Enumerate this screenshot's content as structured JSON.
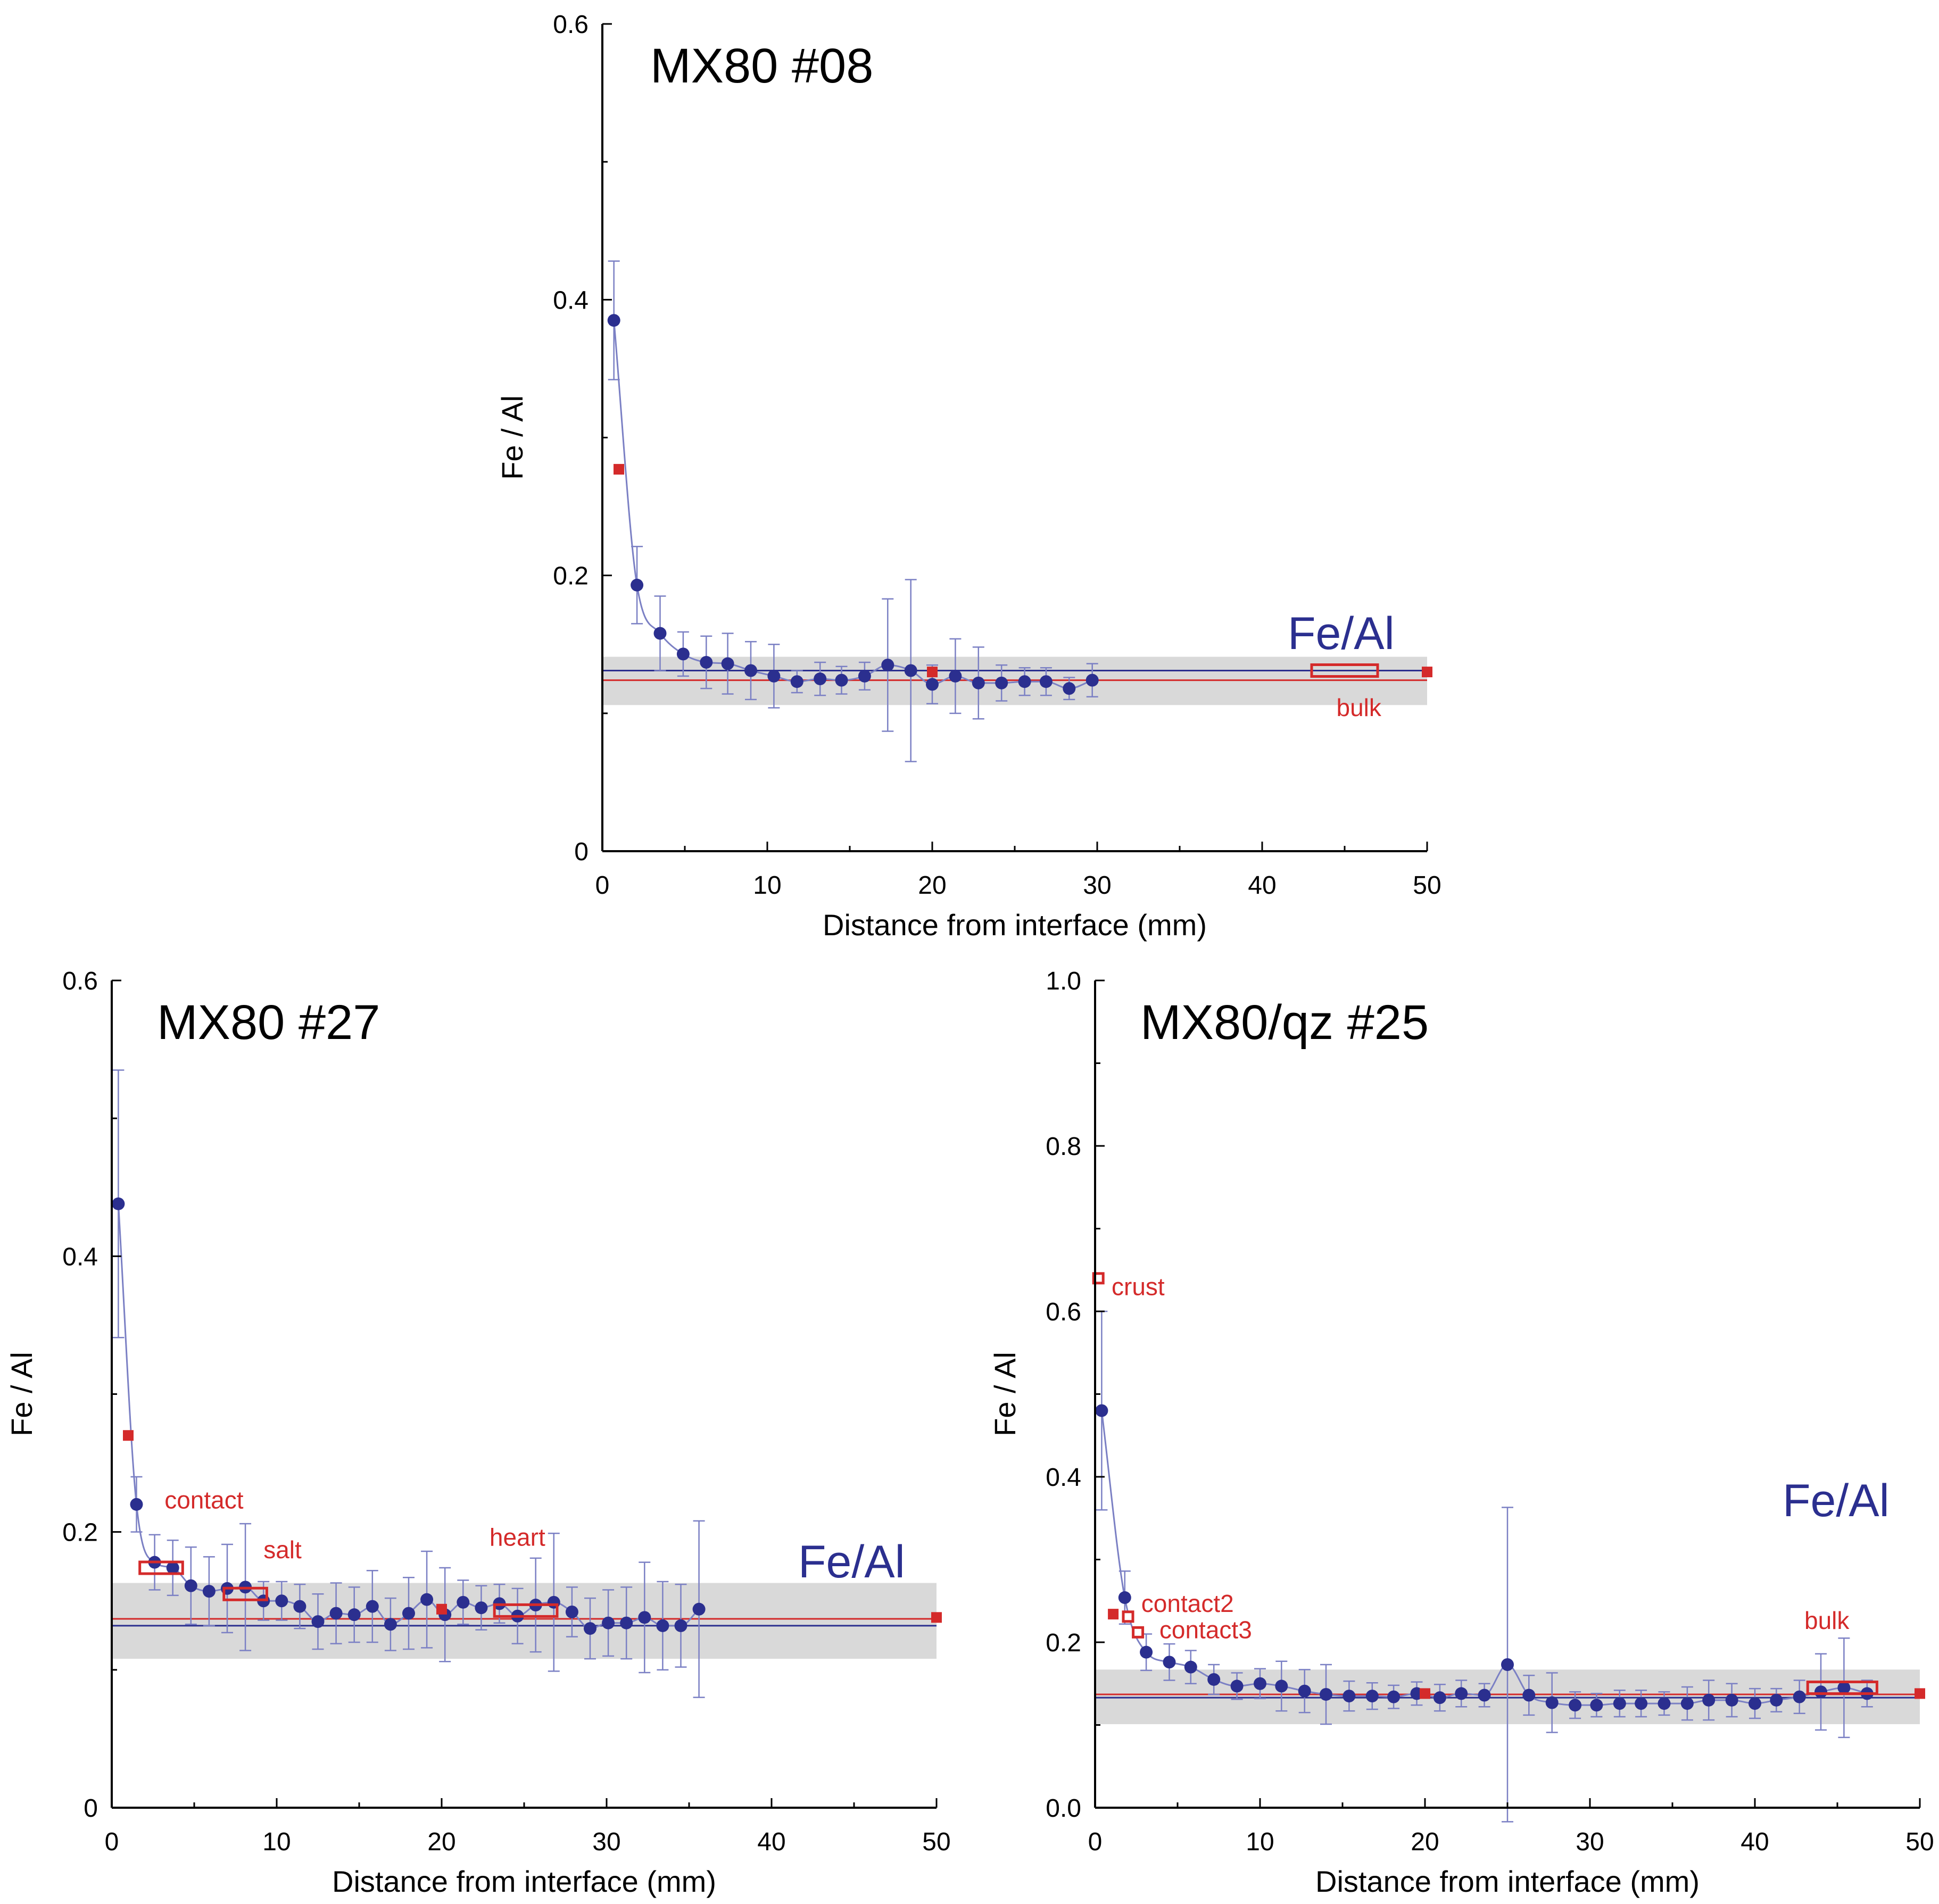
{
  "colors": {
    "series": "#2b2f8f",
    "errorbar": "#7b80c4",
    "reference": "#d42a2a",
    "band": "#d9d9d9",
    "axis": "#000000"
  },
  "chart_data": [
    {
      "id": "p08",
      "type": "scatter",
      "title": "MX80 #08",
      "xlabel": "Distance from interface (mm)",
      "ylabel": "Fe / Al",
      "xlim": [
        0,
        50
      ],
      "ylim": [
        0,
        0.6
      ],
      "xticks": [
        0,
        10,
        20,
        30,
        40,
        50
      ],
      "yticks": [
        0,
        0.2,
        0.4,
        0.6
      ],
      "ytick_labels": [
        "0",
        "0.2",
        "0.4",
        "0.6"
      ],
      "series_label": "Fe/Al",
      "series": {
        "name": "Fe/Al",
        "x": [
          0.7,
          2.1,
          3.5,
          4.9,
          6.3,
          7.6,
          9.0,
          10.4,
          11.8,
          13.2,
          14.5,
          15.9,
          17.3,
          18.7,
          20.0,
          21.4,
          22.8,
          24.2,
          25.6,
          26.9,
          28.3,
          29.7
        ],
        "y": [
          0.385,
          0.193,
          0.158,
          0.143,
          0.137,
          0.136,
          0.131,
          0.127,
          0.123,
          0.125,
          0.124,
          0.127,
          0.135,
          0.131,
          0.121,
          0.127,
          0.122,
          0.122,
          0.123,
          0.123,
          0.118,
          0.124
        ],
        "err": [
          0.043,
          0.028,
          0.027,
          0.016,
          0.019,
          0.022,
          0.021,
          0.023,
          0.008,
          0.012,
          0.01,
          0.01,
          0.048,
          0.066,
          0.014,
          0.027,
          0.026,
          0.013,
          0.01,
          0.01,
          0.008,
          0.012
        ]
      },
      "reference_points": [
        {
          "x": 1.0,
          "y": 0.277,
          "kind": "filled"
        },
        {
          "x": 20.0,
          "y": 0.13,
          "kind": "filled"
        },
        {
          "x": 50.0,
          "y": 0.13,
          "kind": "filled"
        }
      ],
      "boxes": [
        {
          "label": "bulk",
          "x1": 43.0,
          "x2": 47.0,
          "y": 0.131,
          "label_x": 44.5,
          "label_y": 0.098
        }
      ],
      "blue_line": 0.131,
      "red_line": 0.124,
      "band": [
        0.106,
        0.141
      ]
    },
    {
      "id": "p27",
      "type": "scatter",
      "title": "MX80 #27",
      "xlabel": "Distance from interface (mm)",
      "ylabel": "Fe / Al",
      "xlim": [
        0,
        50
      ],
      "ylim": [
        0,
        0.6
      ],
      "xticks": [
        0,
        10,
        20,
        30,
        40,
        50
      ],
      "yticks": [
        0,
        0.2,
        0.4,
        0.6
      ],
      "ytick_labels": [
        "0",
        "0.2",
        "0.4",
        "0.6"
      ],
      "series_label": "Fe/Al",
      "series": {
        "name": "Fe/Al",
        "x": [
          0.4,
          1.5,
          2.6,
          3.7,
          4.8,
          5.9,
          7.0,
          8.1,
          9.2,
          10.3,
          11.4,
          12.5,
          13.6,
          14.7,
          15.8,
          16.9,
          18.0,
          19.1,
          20.2,
          21.3,
          22.4,
          23.5,
          24.6,
          25.7,
          26.8,
          27.9,
          29.0,
          30.1,
          31.2,
          32.3,
          33.4,
          34.5,
          35.6
        ],
        "y": [
          0.438,
          0.22,
          0.178,
          0.174,
          0.161,
          0.157,
          0.159,
          0.16,
          0.15,
          0.15,
          0.146,
          0.135,
          0.141,
          0.14,
          0.146,
          0.133,
          0.141,
          0.151,
          0.14,
          0.149,
          0.145,
          0.148,
          0.139,
          0.147,
          0.149,
          0.142,
          0.13,
          0.134,
          0.134,
          0.138,
          0.132,
          0.132,
          0.144
        ],
        "err": [
          0.097,
          0.02,
          0.02,
          0.02,
          0.028,
          0.025,
          0.032,
          0.046,
          0.014,
          0.014,
          0.016,
          0.02,
          0.022,
          0.02,
          0.026,
          0.019,
          0.026,
          0.035,
          0.034,
          0.016,
          0.016,
          0.014,
          0.02,
          0.034,
          0.05,
          0.018,
          0.022,
          0.024,
          0.026,
          0.04,
          0.032,
          0.03,
          0.064
        ]
      },
      "reference_points": [
        {
          "x": 1.0,
          "y": 0.27,
          "kind": "filled"
        },
        {
          "x": 20.0,
          "y": 0.144,
          "kind": "filled"
        },
        {
          "x": 50.0,
          "y": 0.138,
          "kind": "filled"
        }
      ],
      "boxes": [
        {
          "label": "contact",
          "x1": 1.7,
          "x2": 4.3,
          "y": 0.174,
          "label_x": 3.2,
          "label_y": 0.217
        },
        {
          "label": "salt",
          "x1": 6.8,
          "x2": 9.4,
          "y": 0.155,
          "label_x": 9.2,
          "label_y": 0.181
        },
        {
          "label": "heart",
          "x1": 23.2,
          "x2": 27.0,
          "y": 0.143,
          "label_x": 22.9,
          "label_y": 0.19
        }
      ],
      "blue_line": 0.132,
      "red_line": 0.137,
      "band": [
        0.108,
        0.163
      ]
    },
    {
      "id": "p25",
      "type": "scatter",
      "title": "MX80/qz #25",
      "xlabel": "Distance from interface (mm)",
      "ylabel": "Fe / Al",
      "xlim": [
        0,
        50
      ],
      "ylim": [
        0,
        1.0
      ],
      "xticks": [
        0,
        10,
        20,
        30,
        40,
        50
      ],
      "yticks": [
        0,
        0.2,
        0.4,
        0.6,
        0.8,
        1.0
      ],
      "ytick_labels": [
        "0.0",
        "0.2",
        "0.4",
        "0.6",
        "0.8",
        "1.0"
      ],
      "series_label": "Fe/Al",
      "series": {
        "name": "Fe/Al",
        "x": [
          0.4,
          1.8,
          3.1,
          4.5,
          5.8,
          7.2,
          8.6,
          10.0,
          11.3,
          12.7,
          14.0,
          15.4,
          16.8,
          18.1,
          19.5,
          20.9,
          22.2,
          23.6,
          25.0,
          26.3,
          27.7,
          29.1,
          30.4,
          31.8,
          33.1,
          34.5,
          35.9,
          37.2,
          38.6,
          40.0,
          41.3,
          42.7,
          44.0,
          45.4,
          46.8
        ],
        "y": [
          0.48,
          0.254,
          0.188,
          0.176,
          0.17,
          0.155,
          0.147,
          0.15,
          0.147,
          0.141,
          0.137,
          0.135,
          0.135,
          0.134,
          0.138,
          0.133,
          0.138,
          0.136,
          0.173,
          0.136,
          0.127,
          0.124,
          0.124,
          0.126,
          0.126,
          0.126,
          0.126,
          0.13,
          0.13,
          0.126,
          0.13,
          0.134,
          0.14,
          0.145,
          0.138
        ],
        "err": [
          0.12,
          0.032,
          0.022,
          0.022,
          0.02,
          0.018,
          0.016,
          0.018,
          0.03,
          0.026,
          0.036,
          0.018,
          0.016,
          0.014,
          0.014,
          0.016,
          0.016,
          0.014,
          0.19,
          0.024,
          0.036,
          0.016,
          0.014,
          0.016,
          0.016,
          0.014,
          0.02,
          0.024,
          0.02,
          0.018,
          0.014,
          0.02,
          0.046,
          0.06,
          0.016
        ]
      },
      "reference_points": [
        {
          "x": 0.2,
          "y": 0.64,
          "kind": "open"
        },
        {
          "x": 1.1,
          "y": 0.234,
          "kind": "filled"
        },
        {
          "x": 2.0,
          "y": 0.231,
          "kind": "open"
        },
        {
          "x": 2.6,
          "y": 0.212,
          "kind": "open"
        },
        {
          "x": 20.0,
          "y": 0.138,
          "kind": "filled"
        },
        {
          "x": 50.0,
          "y": 0.138,
          "kind": "filled"
        }
      ],
      "boxes": [
        {
          "label": "bulk",
          "x1": 43.2,
          "x2": 47.4,
          "y": 0.145,
          "label_x": 43.0,
          "label_y": 0.216
        }
      ],
      "point_labels": [
        {
          "label": "crust",
          "x": 1.0,
          "y": 0.63
        },
        {
          "label": "contact2",
          "x": 2.8,
          "y": 0.247
        },
        {
          "label": "contact3",
          "x": 3.9,
          "y": 0.215
        }
      ],
      "blue_line": 0.133,
      "red_line": 0.137,
      "band": [
        0.101,
        0.167
      ]
    }
  ]
}
